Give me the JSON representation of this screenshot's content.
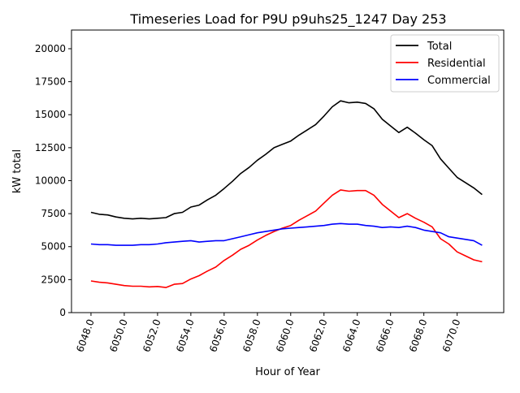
{
  "chart_data": {
    "type": "line",
    "title": "Timeseries Load for P9U p9uhs25_1247  Day 253",
    "xlabel": "Hour of Year",
    "ylabel": "kW total",
    "xlim": [
      6046.83,
      6072.8
    ],
    "ylim": [
      0,
      21415
    ],
    "grid": false,
    "legend_position": "top-right",
    "xticks": [
      6048,
      6050,
      6052,
      6054,
      6056,
      6058,
      6060,
      6062,
      6064,
      6066,
      6068,
      6070
    ],
    "xtick_labels": [
      "6048.0",
      "6050.0",
      "6052.0",
      "6054.0",
      "6056.0",
      "6058.0",
      "6060.0",
      "6062.0",
      "6064.0",
      "6066.0",
      "6068.0",
      "6070.0"
    ],
    "yticks": [
      0,
      2500,
      5000,
      7500,
      10000,
      12500,
      15000,
      17500,
      20000
    ],
    "ytick_labels": [
      "0",
      "2500",
      "5000",
      "7500",
      "10000",
      "12500",
      "15000",
      "17500",
      "20000"
    ],
    "x_start": 6048,
    "x_step": 0.5,
    "series": [
      {
        "name": "Total",
        "color": "#000000",
        "values": [
          7600,
          7450,
          7400,
          7250,
          7150,
          7100,
          7150,
          7100,
          7150,
          7200,
          7500,
          7600,
          8000,
          8150,
          8550,
          8900,
          9400,
          9950,
          10550,
          11000,
          11550,
          12000,
          12500,
          12750,
          13000,
          13450,
          13850,
          14250,
          14900,
          15600,
          16050,
          15900,
          15950,
          15850,
          15450,
          14650,
          14150,
          13650,
          14050,
          13600,
          13100,
          12650,
          11650,
          10950,
          10250,
          9850,
          9450,
          8950
        ]
      },
      {
        "name": "Residential",
        "color": "#ff0000",
        "values": [
          2400,
          2300,
          2250,
          2150,
          2050,
          2000,
          2000,
          1950,
          1980,
          1900,
          2150,
          2200,
          2550,
          2800,
          3150,
          3450,
          3950,
          4350,
          4800,
          5100,
          5500,
          5850,
          6150,
          6400,
          6600,
          7000,
          7350,
          7700,
          8300,
          8900,
          9300,
          9200,
          9250,
          9250,
          8900,
          8200,
          7700,
          7200,
          7500,
          7150,
          6850,
          6500,
          5600,
          5200,
          4600,
          4300,
          4000,
          3850
        ]
      },
      {
        "name": "Commercial",
        "color": "#0000ff",
        "values": [
          5200,
          5150,
          5150,
          5100,
          5100,
          5100,
          5150,
          5150,
          5200,
          5300,
          5350,
          5400,
          5450,
          5350,
          5400,
          5450,
          5450,
          5600,
          5750,
          5900,
          6050,
          6150,
          6250,
          6350,
          6400,
          6450,
          6500,
          6550,
          6600,
          6700,
          6750,
          6700,
          6700,
          6600,
          6550,
          6450,
          6500,
          6450,
          6550,
          6450,
          6250,
          6150,
          6050,
          5750,
          5650,
          5550,
          5450,
          5100
        ]
      }
    ]
  }
}
